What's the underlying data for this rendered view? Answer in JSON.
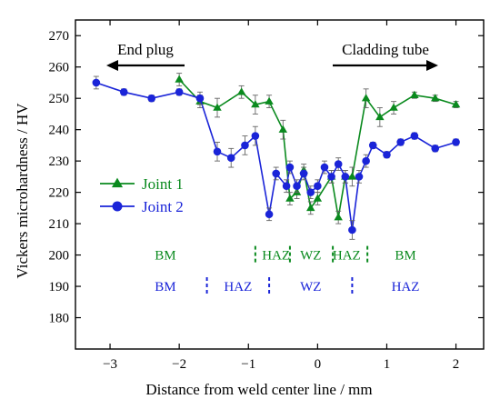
{
  "chart_data": {
    "type": "line",
    "xlabel": "Distance from weld center line / mm",
    "ylabel": "Vickers microhardness / HV",
    "xlim": [
      -3.5,
      2.4
    ],
    "ylim": [
      170,
      275
    ],
    "xticks": [
      -3,
      -2,
      -1,
      0,
      1,
      2
    ],
    "yticks": [
      180,
      190,
      200,
      210,
      220,
      230,
      240,
      250,
      260,
      270
    ],
    "grid": false,
    "legend_position": "left",
    "series": [
      {
        "name": "Joint 1",
        "color": "#0a8a1e",
        "marker": "triangle",
        "x": [
          -2.0,
          -1.7,
          -1.45,
          -1.1,
          -0.9,
          -0.7,
          -0.5,
          -0.4,
          -0.3,
          -0.2,
          -0.1,
          0.0,
          0.2,
          0.3,
          0.4,
          0.5,
          0.7,
          0.9,
          1.1,
          1.4,
          1.7,
          2.0
        ],
        "y": [
          256,
          249,
          247,
          252,
          248,
          249,
          240,
          218,
          220,
          227,
          215,
          218,
          225,
          212,
          225,
          225,
          250,
          244,
          247,
          251,
          250,
          248
        ],
        "err": [
          2,
          2,
          3,
          2,
          3,
          2,
          3,
          2,
          2,
          2,
          2,
          2,
          2,
          2,
          2,
          3,
          3,
          3,
          2,
          1,
          1,
          1
        ]
      },
      {
        "name": "Joint 2",
        "color": "#1a24d8",
        "marker": "circle",
        "x": [
          -3.2,
          -2.8,
          -2.4,
          -2.0,
          -1.7,
          -1.45,
          -1.25,
          -1.05,
          -0.9,
          -0.7,
          -0.6,
          -0.45,
          -0.4,
          -0.3,
          -0.2,
          -0.1,
          0.0,
          0.1,
          0.2,
          0.3,
          0.4,
          0.5,
          0.6,
          0.7,
          0.8,
          1.0,
          1.2,
          1.4,
          1.7,
          2.0
        ],
        "y": [
          255,
          252,
          250,
          252,
          250,
          233,
          231,
          235,
          238,
          213,
          226,
          222,
          228,
          222,
          226,
          220,
          222,
          228,
          225,
          229,
          225,
          208,
          225,
          230,
          235,
          232,
          236,
          238,
          234,
          236
        ],
        "err": [
          2,
          1,
          1,
          1,
          2,
          3,
          3,
          3,
          3,
          2,
          2,
          2,
          2,
          2,
          2,
          2,
          2,
          2,
          2,
          2,
          2,
          3,
          2,
          2,
          1,
          1,
          1,
          1,
          1,
          1
        ]
      }
    ],
    "annotations": {
      "left_arrow_label": "End plug",
      "right_arrow_label": "Cladding tube",
      "joint1_zones": [
        {
          "label": "BM",
          "x": -2.2
        },
        {
          "label": "HAZ",
          "x": -0.6
        },
        {
          "label": "WZ",
          "x": -0.1
        },
        {
          "label": "HAZ",
          "x": 0.42
        },
        {
          "label": "BM",
          "x": 1.27
        }
      ],
      "joint1_dividers": [
        -0.9,
        -0.4,
        0.22,
        0.72
      ],
      "joint2_zones": [
        {
          "label": "BM",
          "x": -2.2
        },
        {
          "label": "HAZ",
          "x": -1.15
        },
        {
          "label": "WZ",
          "x": -0.1
        },
        {
          "label": "HAZ",
          "x": 1.27
        }
      ],
      "joint2_dividers": [
        -1.6,
        -0.7,
        0.5
      ]
    }
  }
}
